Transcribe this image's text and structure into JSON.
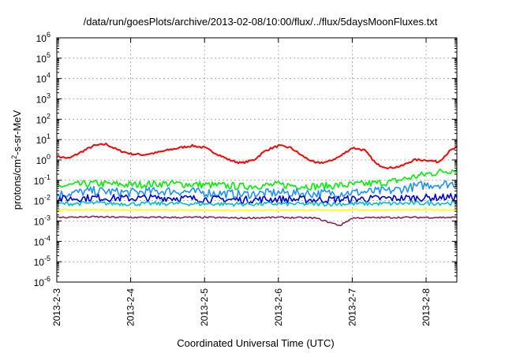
{
  "chart_data": {
    "type": "line",
    "title": "/data/run/goesPlots/archive/2013-02-08/10:00/flux/../flux/5daysMoonFluxes.txt",
    "xlabel": "Coordinated Universal Time (UTC)",
    "ylabel": "protons/cm2-s-sr-MeV",
    "ylabel_parts": {
      "before": "protons/cm",
      "sup": "2",
      "after": "-s-sr-MeV"
    },
    "y_scale": "log",
    "ylim": [
      1e-06,
      1000000.0
    ],
    "y_ticks": [
      {
        "value": 1e-06,
        "base": "10",
        "exp": "-6"
      },
      {
        "value": 1e-05,
        "base": "10",
        "exp": "-5"
      },
      {
        "value": 0.0001,
        "base": "10",
        "exp": "-4"
      },
      {
        "value": 0.001,
        "base": "10",
        "exp": "-3"
      },
      {
        "value": 0.01,
        "base": "10",
        "exp": "-2"
      },
      {
        "value": 0.1,
        "base": "10",
        "exp": "-1"
      },
      {
        "value": 1,
        "base": "10",
        "exp": "0"
      },
      {
        "value": 10,
        "base": "10",
        "exp": "1"
      },
      {
        "value": 100,
        "base": "10",
        "exp": "2"
      },
      {
        "value": 1000.0,
        "base": "10",
        "exp": "3"
      },
      {
        "value": 10000.0,
        "base": "10",
        "exp": "4"
      },
      {
        "value": 100000.0,
        "base": "10",
        "exp": "5"
      },
      {
        "value": 1000000.0,
        "base": "10",
        "exp": "6"
      }
    ],
    "xlim": [
      "2013-02-03",
      "2013-02-08 10:00"
    ],
    "x_ticks": [
      "2013-2-3",
      "2013-2-4",
      "2013-2-5",
      "2013-2-6",
      "2013-2-7",
      "2013-2-8"
    ],
    "grid": true,
    "series": [
      {
        "color": "#ff0000",
        "x": [
          "2013-02-03 00:00",
          "2013-02-03 04:00",
          "2013-02-03 08:00",
          "2013-02-03 12:00",
          "2013-02-03 16:00",
          "2013-02-03 20:00",
          "2013-02-04 00:00",
          "2013-02-04 04:00",
          "2013-02-04 08:00",
          "2013-02-04 12:00",
          "2013-02-04 16:00",
          "2013-02-04 20:00",
          "2013-02-05 00:00",
          "2013-02-05 04:00",
          "2013-02-05 08:00",
          "2013-02-05 12:00",
          "2013-02-05 16:00",
          "2013-02-05 20:00",
          "2013-02-06 00:00",
          "2013-02-06 04:00",
          "2013-02-06 08:00",
          "2013-02-06 12:00",
          "2013-02-06 16:00",
          "2013-02-06 20:00",
          "2013-02-07 00:00",
          "2013-02-07 04:00",
          "2013-02-07 08:00",
          "2013-02-07 12:00",
          "2013-02-07 16:00",
          "2013-02-07 20:00",
          "2013-02-08 00:00",
          "2013-02-08 04:00",
          "2013-02-08 08:00",
          "2013-02-08 10:00"
        ],
        "values": [
          1.5,
          1.2,
          2.5,
          5,
          6,
          3,
          2,
          1.8,
          2.2,
          3,
          4,
          5,
          4,
          2,
          1,
          0.7,
          1,
          3,
          5,
          4,
          1.5,
          0.7,
          0.8,
          1.5,
          4,
          3,
          0.6,
          0.4,
          0.5,
          1,
          1,
          0.8,
          3,
          4
        ]
      },
      {
        "color": "#00ee00",
        "x": [
          "2013-02-03 00:00",
          "2013-02-03 12:00",
          "2013-02-04 00:00",
          "2013-02-04 12:00",
          "2013-02-05 00:00",
          "2013-02-05 12:00",
          "2013-02-06 00:00",
          "2013-02-06 12:00",
          "2013-02-07 00:00",
          "2013-02-07 12:00",
          "2013-02-08 00:00",
          "2013-02-08 10:00"
        ],
        "values": [
          0.05,
          0.07,
          0.06,
          0.07,
          0.06,
          0.05,
          0.06,
          0.05,
          0.06,
          0.08,
          0.2,
          0.35
        ]
      },
      {
        "color": "#1e90ff",
        "x": [
          "2013-02-03 00:00",
          "2013-02-03 12:00",
          "2013-02-04 00:00",
          "2013-02-04 12:00",
          "2013-02-05 00:00",
          "2013-02-05 12:00",
          "2013-02-06 00:00",
          "2013-02-06 12:00",
          "2013-02-07 00:00",
          "2013-02-07 12:00",
          "2013-02-08 00:00",
          "2013-02-08 10:00"
        ],
        "values": [
          0.02,
          0.03,
          0.025,
          0.03,
          0.025,
          0.02,
          0.025,
          0.022,
          0.025,
          0.03,
          0.06,
          0.07
        ]
      },
      {
        "color": "#0000cd",
        "x": [
          "2013-02-03 00:00",
          "2013-02-03 12:00",
          "2013-02-04 00:00",
          "2013-02-04 12:00",
          "2013-02-05 00:00",
          "2013-02-05 12:00",
          "2013-02-06 00:00",
          "2013-02-06 12:00",
          "2013-02-07 00:00",
          "2013-02-07 12:00",
          "2013-02-08 00:00",
          "2013-02-08 10:00"
        ],
        "values": [
          0.012,
          0.014,
          0.013,
          0.014,
          0.012,
          0.011,
          0.012,
          0.011,
          0.012,
          0.013,
          0.014,
          0.015
        ]
      },
      {
        "color": "#00c0c0",
        "x": [
          "2013-02-03 00:00",
          "2013-02-03 12:00",
          "2013-02-04 00:00",
          "2013-02-04 12:00",
          "2013-02-05 00:00",
          "2013-02-05 12:00",
          "2013-02-06 00:00",
          "2013-02-06 12:00",
          "2013-02-07 00:00",
          "2013-02-07 12:00",
          "2013-02-08 00:00",
          "2013-02-08 10:00"
        ],
        "values": [
          0.007,
          0.0075,
          0.007,
          0.0072,
          0.007,
          0.0068,
          0.007,
          0.0068,
          0.007,
          0.0072,
          0.0075,
          0.0076
        ]
      },
      {
        "color": "#ffff00",
        "x": [
          "2013-02-03 00:00",
          "2013-02-03 12:00",
          "2013-02-04 00:00",
          "2013-02-04 12:00",
          "2013-02-05 00:00",
          "2013-02-05 12:00",
          "2013-02-06 00:00",
          "2013-02-06 12:00",
          "2013-02-07 00:00",
          "2013-02-07 12:00",
          "2013-02-08 00:00",
          "2013-02-08 10:00"
        ],
        "values": [
          0.0035,
          0.0036,
          0.0035,
          0.0035,
          0.0034,
          0.0034,
          0.0035,
          0.0034,
          0.0035,
          0.0035,
          0.0036,
          0.0036
        ]
      },
      {
        "color": "#8b2252",
        "x": [
          "2013-02-03 00:00",
          "2013-02-03 12:00",
          "2013-02-04 00:00",
          "2013-02-04 12:00",
          "2013-02-05 00:00",
          "2013-02-05 12:00",
          "2013-02-06 00:00",
          "2013-02-06 12:00",
          "2013-02-06 20:00",
          "2013-02-07 00:00",
          "2013-02-07 12:00",
          "2013-02-08 00:00",
          "2013-02-08 10:00"
        ],
        "values": [
          0.0015,
          0.0016,
          0.0015,
          0.0015,
          0.0015,
          0.0014,
          0.0015,
          0.0014,
          0.0006,
          0.0014,
          0.0015,
          0.0015,
          0.0015
        ]
      }
    ]
  }
}
